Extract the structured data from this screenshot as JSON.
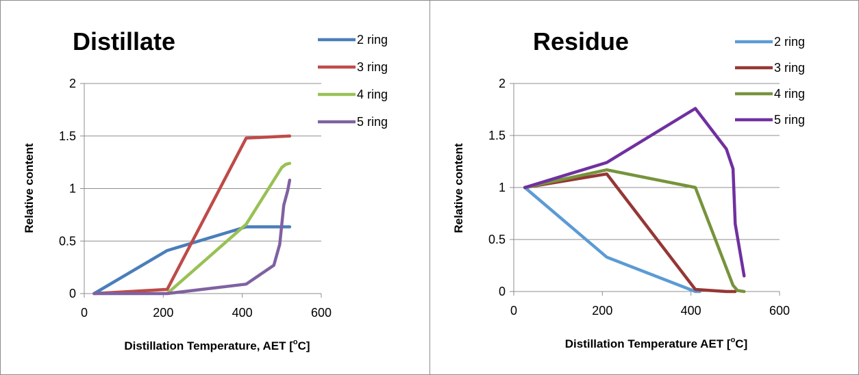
{
  "chart_data": [
    {
      "type": "line",
      "title": "Distillate",
      "xlabel": "Distillation Temperature, AET [",
      "xlabel_sup": "o",
      "xlabel_unit": "C]",
      "ylabel": "Relative content",
      "xlim": [
        0,
        600
      ],
      "ylim": [
        0,
        2
      ],
      "xticks": [
        "0",
        "200",
        "400",
        "600"
      ],
      "yticks": [
        "0",
        "0.5",
        "1",
        "1.5",
        "2"
      ],
      "grid": "horizontal",
      "legend": "top-right",
      "series": [
        {
          "name": "2 ring",
          "color": "#4a7ebb",
          "x": [
            25,
            210,
            410,
            520
          ],
          "y": [
            0,
            0.41,
            0.635,
            0.635
          ]
        },
        {
          "name": "3 ring",
          "color": "#be4b48",
          "x": [
            25,
            210,
            410,
            520
          ],
          "y": [
            0,
            0.04,
            1.48,
            1.5
          ]
        },
        {
          "name": "4 ring",
          "color": "#98c154",
          "x": [
            210,
            410,
            500,
            510,
            520
          ],
          "y": [
            0,
            0.66,
            1.2,
            1.23,
            1.24
          ]
        },
        {
          "name": "5 ring",
          "color": "#7f62a1",
          "x": [
            25,
            210,
            410,
            480,
            495,
            505,
            515,
            520
          ],
          "y": [
            0,
            0,
            0.09,
            0.27,
            0.47,
            0.84,
            0.98,
            1.08
          ]
        }
      ]
    },
    {
      "type": "line",
      "title": "Residue",
      "xlabel": "Distillation Temperature AET [",
      "xlabel_sup": "o",
      "xlabel_unit": "C]",
      "ylabel": "Relative content",
      "xlim": [
        0,
        600
      ],
      "ylim": [
        0,
        2
      ],
      "xticks": [
        "0",
        "200",
        "400",
        "600"
      ],
      "yticks": [
        "0",
        "0.5",
        "1",
        "1.5",
        "2"
      ],
      "grid": "horizontal",
      "legend": "top-right",
      "series": [
        {
          "name": "2 ring",
          "color": "#5b9bd5",
          "x": [
            25,
            210,
            410,
            420
          ],
          "y": [
            1,
            0.33,
            0,
            0
          ]
        },
        {
          "name": "3 ring",
          "color": "#953735",
          "x": [
            25,
            210,
            410,
            480,
            500
          ],
          "y": [
            1,
            1.13,
            0.02,
            0,
            0
          ]
        },
        {
          "name": "4 ring",
          "color": "#77933c",
          "x": [
            25,
            210,
            410,
            495,
            505,
            520
          ],
          "y": [
            1,
            1.17,
            1,
            0.06,
            0.01,
            0
          ]
        },
        {
          "name": "5 ring",
          "color": "#7030a0",
          "x": [
            25,
            210,
            410,
            480,
            495,
            500,
            520
          ],
          "y": [
            1,
            1.24,
            1.76,
            1.37,
            1.18,
            0.65,
            0.15
          ]
        }
      ]
    }
  ]
}
